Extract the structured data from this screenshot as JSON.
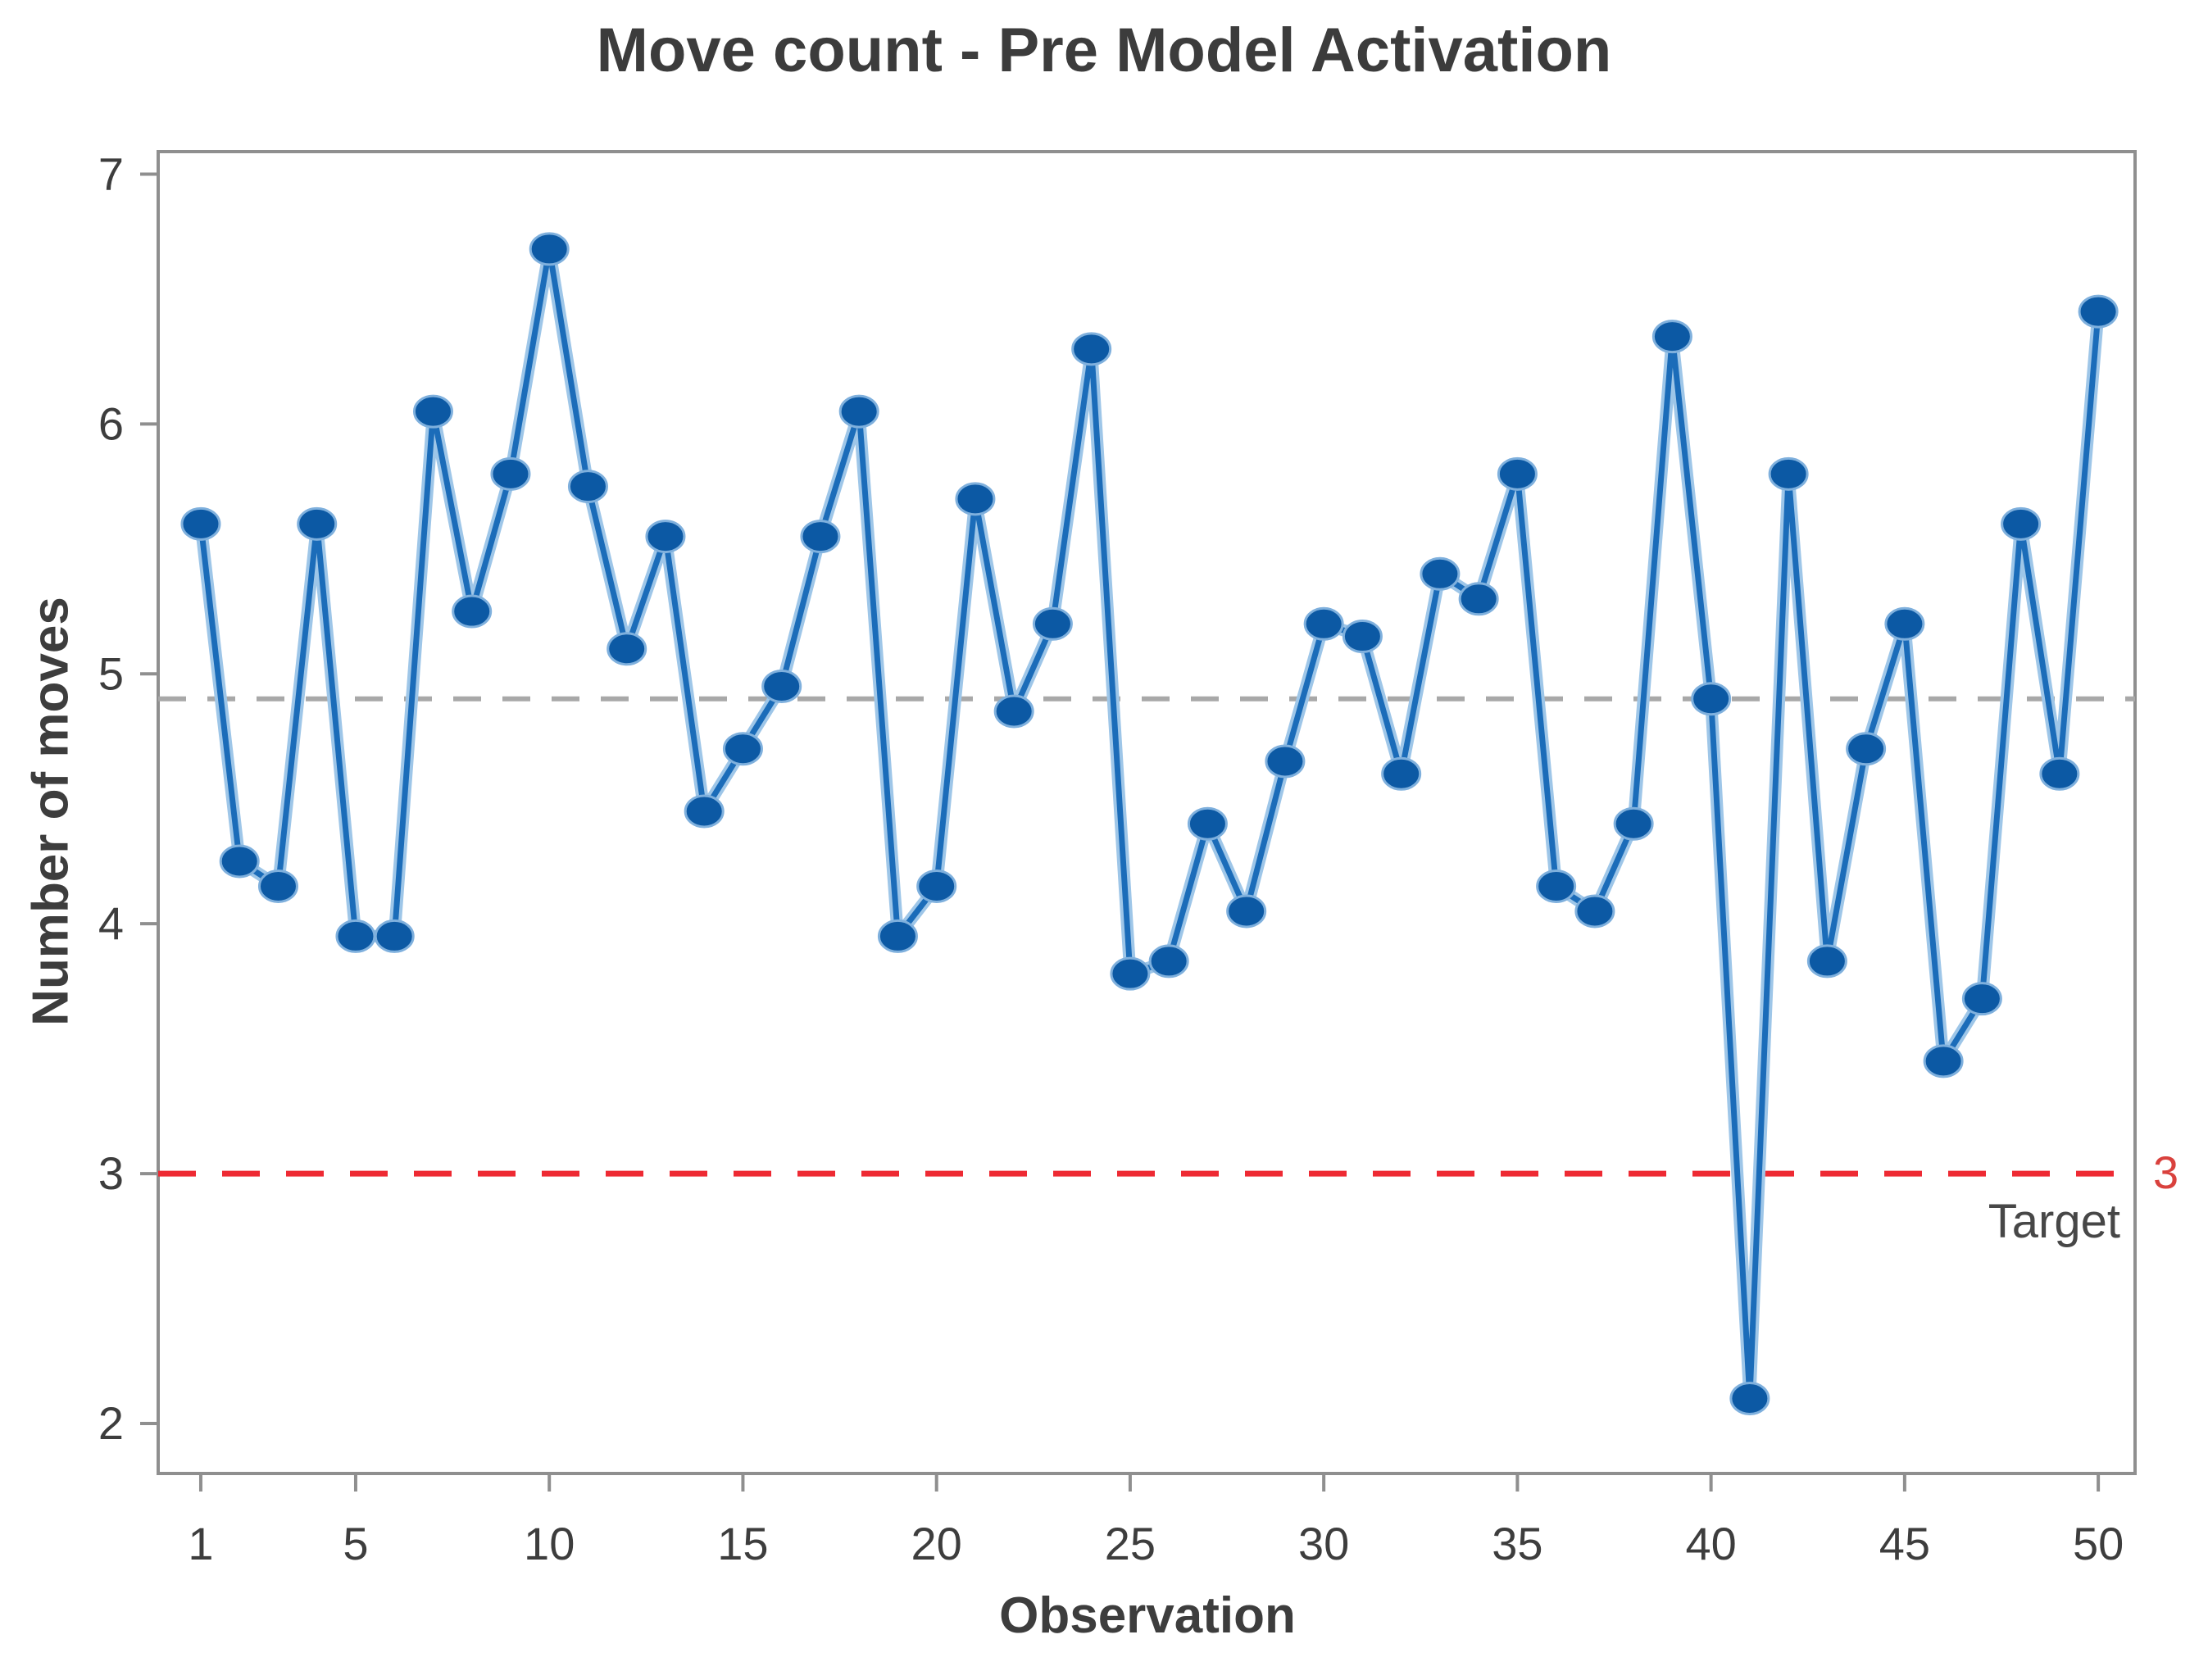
{
  "chart_data": {
    "type": "line",
    "title": "Move count - Pre Model Activation",
    "xlabel": "Observation",
    "ylabel": "Number of moves",
    "series_name": "Move count",
    "x_start": 1,
    "values": [
      5.6,
      4.25,
      4.15,
      5.6,
      3.95,
      3.95,
      6.05,
      5.25,
      5.8,
      6.7,
      5.75,
      5.1,
      5.55,
      4.45,
      4.7,
      4.95,
      5.55,
      6.05,
      3.95,
      4.15,
      5.7,
      4.85,
      5.2,
      6.3,
      3.8,
      3.85,
      4.4,
      4.05,
      4.65,
      5.2,
      5.15,
      4.6,
      5.4,
      5.3,
      5.8,
      4.15,
      4.05,
      4.4,
      6.35,
      4.9,
      2.1,
      5.8,
      3.85,
      4.7,
      5.2,
      3.45,
      3.7,
      5.6,
      4.6,
      6.45
    ],
    "yticks": [
      2,
      3,
      4,
      5,
      6,
      7
    ],
    "xticks": [
      1,
      5,
      10,
      15,
      20,
      25,
      30,
      35,
      40,
      45,
      50
    ],
    "ylim": [
      1.8,
      7.09
    ],
    "xlim": [
      -0.1,
      50.95
    ],
    "grid": false,
    "legend_position": "none",
    "mean_line_value": 4.9,
    "target_line_value": 3,
    "target_value_label": "3",
    "target_name_label": "Target",
    "marker_style": "filled-circle",
    "line_style": "solid",
    "mean_line_style": "dashed",
    "target_line_style": "dashed"
  },
  "colors": {
    "background": "#ffffff",
    "frame": "#8f8f8f",
    "tick": "#8f8f8f",
    "tick_label": "#3d3d3d",
    "title_text": "#3c3c3c",
    "axis_title_text": "#3d3d3d",
    "series_line_core": "#1b6cb9",
    "series_line_halo": "#9ec6e8",
    "marker_fill": "#0c59a4",
    "marker_edge": "#7fb0dd",
    "mean_line": "#a8a8a8",
    "target_line": "#ee2a33",
    "target_value_text": "#d9413d",
    "target_name_text": "#474747"
  }
}
